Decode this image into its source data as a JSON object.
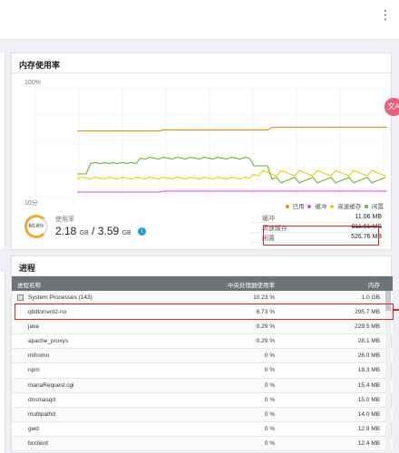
{
  "memory": {
    "title": "内存使用率",
    "y_max_label": "100%",
    "x_left_label": "10分",
    "legend": [
      {
        "label": "已用",
        "color": "#f08c00"
      },
      {
        "label": "缓冲",
        "color": "#e040fb"
      },
      {
        "label": "高速缓存",
        "color": "#e8d400"
      },
      {
        "label": "闲置",
        "color": "#6ab42d"
      }
    ],
    "gauge_percent": "60.6%",
    "gauge_fraction": 0.606,
    "usage_label": "使用率",
    "usage_used": "2.18",
    "usage_total": "3.59",
    "usage_unit": "GB",
    "usage_sep": "/",
    "info_icon": "i",
    "stats": [
      {
        "key": "缓冲",
        "value": "11.06 MB"
      },
      {
        "key": "高速缓存",
        "value": "911.61 MB"
      },
      {
        "key": "闲置",
        "value": "526.76 MB"
      }
    ]
  },
  "process": {
    "title": "进程",
    "columns": [
      "进程名称",
      "中央处理器使用率",
      "内存"
    ],
    "rows": [
      {
        "name": "System Processes (143)",
        "cpu": "10.23 %",
        "mem": "1.0 GB"
      },
      {
        "name": "qbittorrent2-no",
        "cpu": "6.73 %",
        "mem": "295.7 MB"
      },
      {
        "name": "java",
        "cpu": "0.29 %",
        "mem": "229.5 MB"
      },
      {
        "name": "apache_proxys",
        "cpu": "0.29 %",
        "mem": "28.1 MB"
      },
      {
        "name": "mihomo",
        "cpu": "0 %",
        "mem": "26.0 MB"
      },
      {
        "name": "npm",
        "cpu": "0 %",
        "mem": "18.3 MB"
      },
      {
        "name": "manaRequest.cgi",
        "cpu": "0 %",
        "mem": "15.4 MB"
      },
      {
        "name": "dnsmasqd",
        "cpu": "0 %",
        "mem": "15.0 MB"
      },
      {
        "name": "multipathd",
        "cpu": "0 %",
        "mem": "14.0 MB"
      },
      {
        "name": "gwd",
        "cpu": "0 %",
        "mem": "12.9 MB"
      },
      {
        "name": "bcclient",
        "cpu": "0 %",
        "mem": "12.4 MB"
      }
    ]
  },
  "translate_button": "文A",
  "menu_icon": "⋮"
}
